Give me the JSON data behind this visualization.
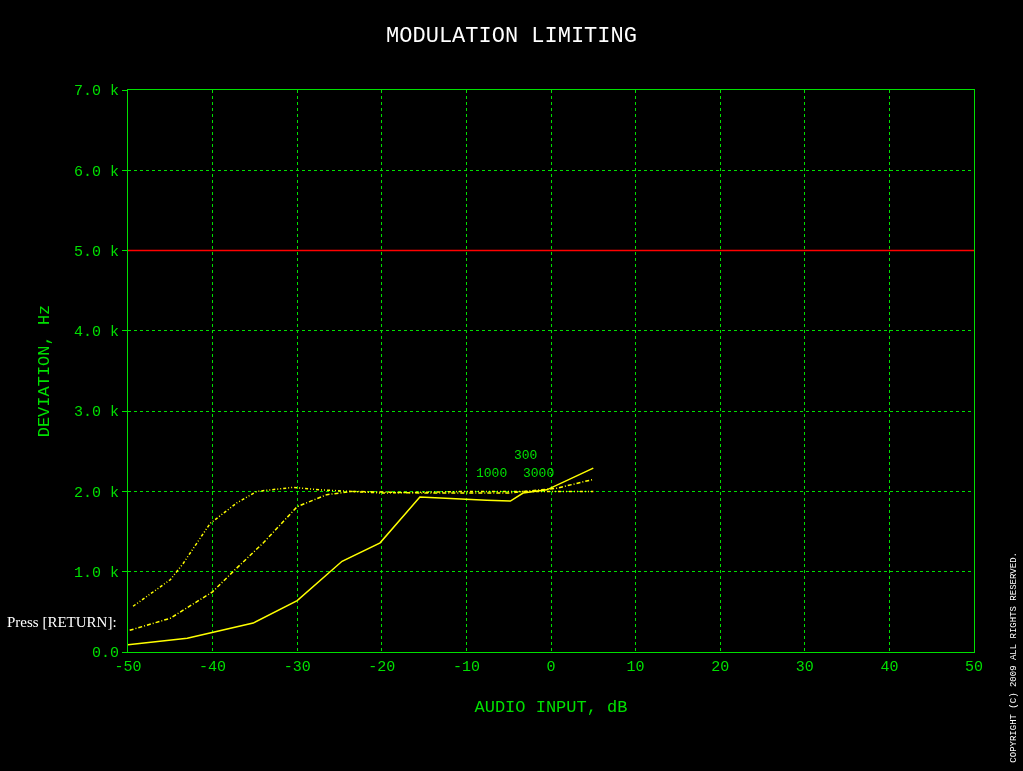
{
  "chart_data": {
    "type": "line",
    "title": "MODULATION LIMITING",
    "xlabel": "AUDIO INPUT, dB",
    "ylabel": "DEVIATION, Hz",
    "xlim": [
      -50,
      50
    ],
    "xticks": [
      -50,
      -40,
      -30,
      -20,
      -10,
      0,
      10,
      20,
      30,
      40,
      50
    ],
    "ylim": [
      0,
      7000
    ],
    "yticks": [
      {
        "value": 0,
        "label": "0.0"
      },
      {
        "value": 1000,
        "label": "1.0 k"
      },
      {
        "value": 2000,
        "label": "2.0 k"
      },
      {
        "value": 3000,
        "label": "3.0 k"
      },
      {
        "value": 4000,
        "label": "4.0 k"
      },
      {
        "value": 5000,
        "label": "5.0 k"
      },
      {
        "value": 6000,
        "label": "6.0 k"
      },
      {
        "value": 7000,
        "label": "7.0 k"
      }
    ],
    "grid": true,
    "marker": "none",
    "series": [
      {
        "color": "#ffff00",
        "line_style": "solid",
        "x": [
          -50,
          -43,
          -35.2,
          -30,
          -24.7,
          -20.2,
          -15.5,
          -7.6,
          -4.8,
          -3.3,
          -0.5,
          5
        ],
        "values": [
          90,
          170,
          360,
          640,
          1130,
          1360,
          1930,
          1890,
          1880,
          1980,
          2020,
          2290
        ]
      },
      {
        "color": "#ffff00",
        "line_style": "dashed",
        "x": [
          -49.8,
          -45,
          -40,
          -37.4,
          -34,
          -30,
          -26.5,
          -23.4,
          -15,
          -5,
          0.7,
          5
        ],
        "values": [
          270,
          420,
          750,
          1020,
          1360,
          1810,
          1960,
          2000,
          1980,
          1980,
          2040,
          2150
        ]
      },
      {
        "color": "#ffff00",
        "line_style": "dotted",
        "x": [
          -49.4,
          -45,
          -43.5,
          -40.3,
          -37.1,
          -34.8,
          -30.5,
          -27.3,
          -20,
          -10,
          0,
          5
        ],
        "values": [
          570,
          900,
          1100,
          1600,
          1860,
          2000,
          2050,
          2020,
          1980,
          2000,
          2000,
          2000
        ]
      }
    ],
    "ref_lines": [
      {
        "axis": "y",
        "value": 5000,
        "color": "#ff0000"
      }
    ],
    "annotations": [
      "300",
      "1000",
      "3000",
      "Press [RETURN]:",
      "COPYRIGHT (C) 2009 ALL RIGHTS RESERVED."
    ]
  }
}
